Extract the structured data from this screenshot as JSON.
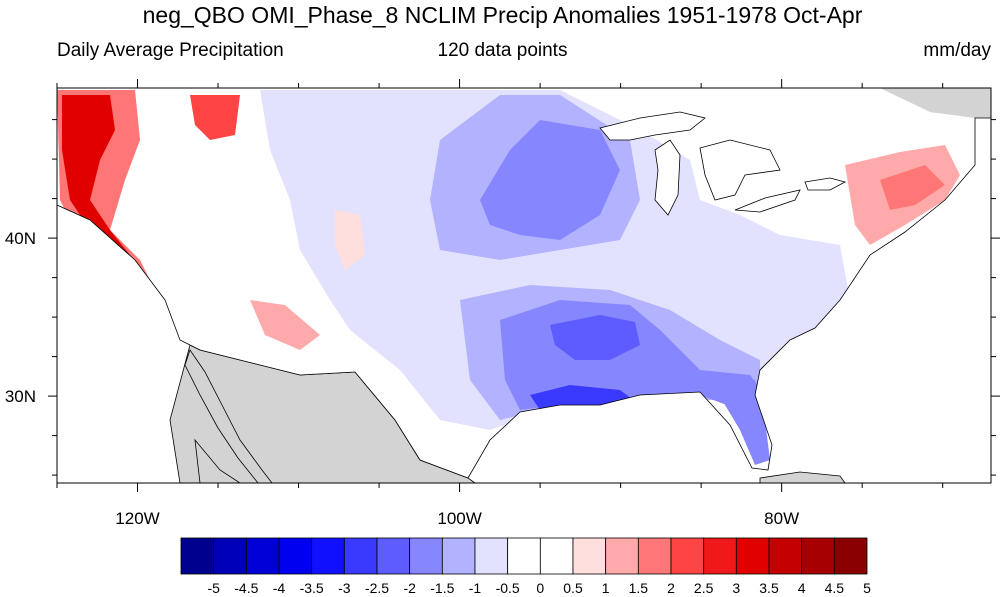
{
  "title": "neg_QBO OMI_Phase_8 NCLIM Precip Anomalies 1951-1978 Oct-Apr",
  "subtitle_left": "Daily Average Precipitation",
  "subtitle_center": "120 data points",
  "subtitle_right": "mm/day",
  "axes": {
    "lon_range": [
      -125,
      -67
    ],
    "lat_range": [
      24.5,
      49.5
    ],
    "lon_ticks": [
      {
        "value": -120,
        "label": "120W"
      },
      {
        "value": -100,
        "label": "100W"
      },
      {
        "value": -80,
        "label": "80W"
      }
    ],
    "lat_ticks": [
      {
        "value": 40,
        "label": "40N"
      },
      {
        "value": 30,
        "label": "30N"
      }
    ]
  },
  "colorbar": {
    "labels": [
      "-5",
      "-4.5",
      "-4",
      "-3.5",
      "-3",
      "-2.5",
      "-2",
      "-1.5",
      "-1",
      "-0.5",
      "0",
      "0.5",
      "1",
      "1.5",
      "2",
      "2.5",
      "3",
      "3.5",
      "4",
      "4.5",
      "5"
    ],
    "colors": [
      "#00008f",
      "#0000b8",
      "#0000d6",
      "#0000f0",
      "#1010ff",
      "#3a3aff",
      "#5c5cff",
      "#8686ff",
      "#b2b2ff",
      "#e2e2ff",
      "#ffffff",
      "#ffffff",
      "#ffdede",
      "#ffaaaa",
      "#ff7676",
      "#ff4444",
      "#f01818",
      "#e00000",
      "#c40000",
      "#a60000",
      "#8a0000"
    ]
  },
  "colors": {
    "land_outside": "#d3d3d3",
    "ocean": "#ffffff",
    "us_background": "#ffffff"
  }
}
